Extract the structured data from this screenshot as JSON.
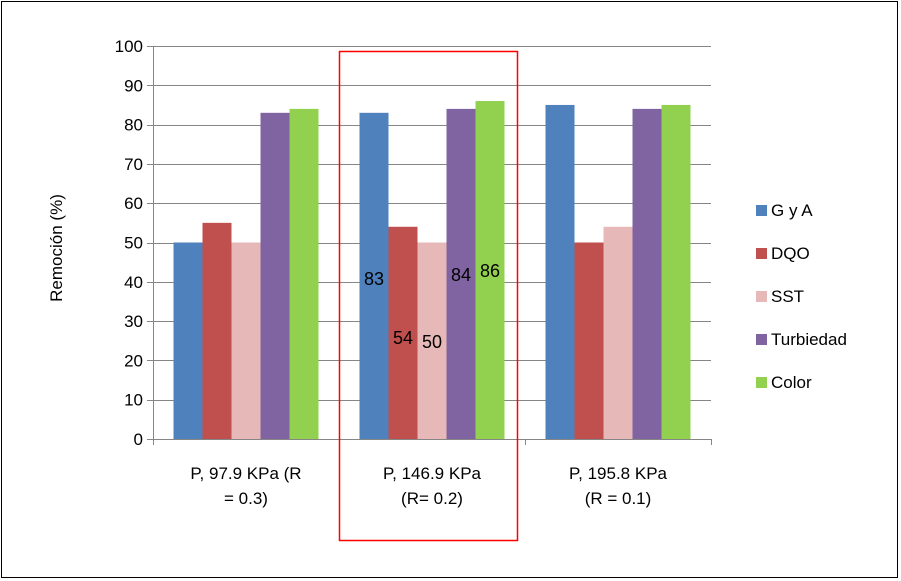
{
  "chart_data": {
    "type": "bar",
    "title": "",
    "xlabel": "",
    "ylabel": "Remoción (%)",
    "ylim": [
      0,
      100
    ],
    "yticks": [
      0,
      10,
      20,
      30,
      40,
      50,
      60,
      70,
      80,
      90,
      100
    ],
    "grid": true,
    "legend_position": "right",
    "categories": [
      [
        "P, 97.9 KPa (R",
        "= 0.3)"
      ],
      [
        "P, 146.9 KPa",
        "(R= 0.2)"
      ],
      [
        "P, 195.8 KPa",
        "(R = 0.1)"
      ]
    ],
    "highlighted_category": 1,
    "highlight_color": "#ff0000",
    "series": [
      {
        "name": "G y A",
        "color": "#4f81bd",
        "values": [
          50,
          83,
          85
        ]
      },
      {
        "name": "DQO",
        "color": "#c0504d",
        "values": [
          55,
          54,
          50
        ]
      },
      {
        "name": "SST",
        "color": "#e6b9b8",
        "values": [
          50,
          50,
          54
        ]
      },
      {
        "name": "Turbiedad",
        "color": "#8064a2",
        "values": [
          83,
          84,
          84
        ]
      },
      {
        "name": "Color",
        "color": "#92d050",
        "values": [
          84,
          86,
          85
        ]
      }
    ],
    "data_labels": [
      {
        "category": 1,
        "series": 0,
        "text": "83",
        "y": 41
      },
      {
        "category": 1,
        "series": 1,
        "text": "54",
        "y": 26
      },
      {
        "category": 1,
        "series": 2,
        "text": "50",
        "y": 25
      },
      {
        "category": 1,
        "series": 3,
        "text": "84",
        "y": 42
      },
      {
        "category": 1,
        "series": 4,
        "text": "86",
        "y": 43
      }
    ]
  }
}
